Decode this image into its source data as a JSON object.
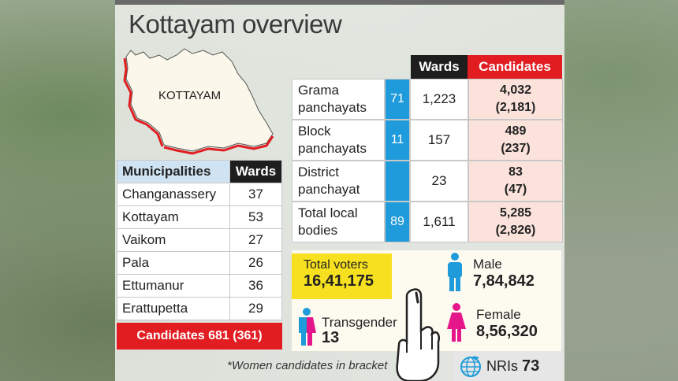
{
  "title": "Kottayam overview",
  "map_label": "KOTTAYAM",
  "municipalities": {
    "header_name": "Municipalities",
    "header_wards": "Wards",
    "rows": [
      {
        "name": "Changanassery",
        "wards": "37"
      },
      {
        "name": "Kottayam",
        "wards": "53"
      },
      {
        "name": "Vaikom",
        "wards": "27"
      },
      {
        "name": "Pala",
        "wards": "26"
      },
      {
        "name": "Ettumanur",
        "wards": "36"
      },
      {
        "name": "Erattupetta",
        "wards": "29"
      }
    ],
    "candidates_banner": "Candidates 681 (361)"
  },
  "local_bodies": {
    "header_wards": "Wards",
    "header_candidates": "Candidates",
    "rows": [
      {
        "line1": "Grama",
        "line2": "panchayats",
        "count": "71",
        "wards": "1,223",
        "cand1": "4,032",
        "cand2": "(2,181)"
      },
      {
        "line1": "Block",
        "line2": "panchayats",
        "count": "11",
        "wards": "157",
        "cand1": "489",
        "cand2": "(237)"
      },
      {
        "line1": "District",
        "line2": "panchayat",
        "count": "",
        "wards": "23",
        "cand1": "83",
        "cand2": "(47)"
      },
      {
        "line1": "Total local",
        "line2": "bodies",
        "count": "89",
        "wards": "1,611",
        "cand1": "5,285",
        "cand2": "(2,826)"
      }
    ]
  },
  "voters": {
    "total_label": "Total voters",
    "total_value": "16,41,175",
    "male_label": "Male",
    "male_value": "7,84,842",
    "female_label": "Female",
    "female_value": "8,56,320",
    "transgender_label": "Transgender",
    "transgender_value": "13",
    "nri_label": "NRIs",
    "nri_value": "73"
  },
  "footnote": "*Women candidates in bracket",
  "colors": {
    "accent_red": "#e11d22",
    "accent_blue": "#1f9bdb",
    "male_icon": "#1f9bdb",
    "female_icon": "#e5168a",
    "total_yellow": "#f7e01f"
  },
  "icons": [
    "male-icon",
    "female-icon",
    "transgender-icon",
    "voting-finger-icon",
    "globe-icon"
  ]
}
